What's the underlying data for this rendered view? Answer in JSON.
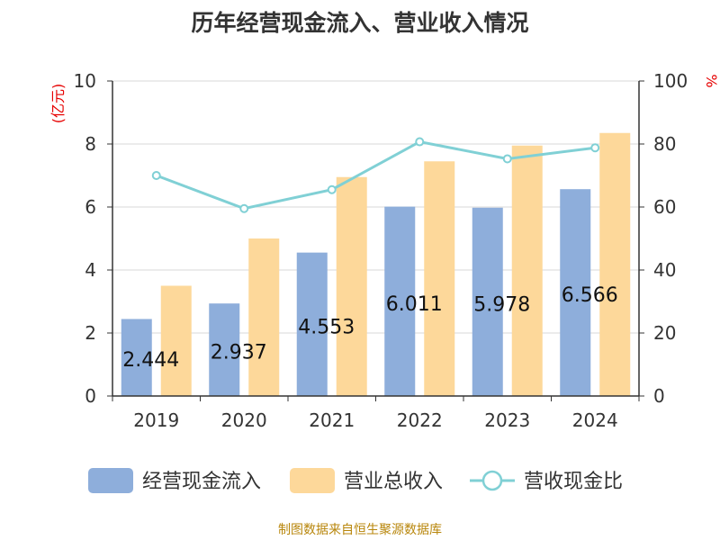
{
  "title": "历年经营现金流入、营业收入情况",
  "footer": "制图数据来自恒生聚源数据库",
  "chart_data": {
    "type": "bar",
    "categories": [
      "2019",
      "2020",
      "2021",
      "2022",
      "2023",
      "2024"
    ],
    "series": [
      {
        "name": "经营现金流入",
        "type": "bar",
        "axis": "left",
        "color": "#8eaedb",
        "values": [
          2.444,
          2.937,
          4.553,
          6.011,
          5.978,
          6.566
        ],
        "labels": [
          "2.444",
          "2.937",
          "4.553",
          "6.011",
          "5.978",
          "6.566"
        ]
      },
      {
        "name": "营业总收入",
        "type": "bar",
        "axis": "left",
        "color": "#fdd89a",
        "values": [
          3.5,
          5.0,
          6.95,
          7.45,
          7.95,
          8.35
        ]
      },
      {
        "name": "营收现金比",
        "type": "line",
        "axis": "right",
        "color": "#80d0d5",
        "values": [
          70.0,
          59.5,
          65.5,
          80.7,
          75.3,
          78.8
        ]
      }
    ],
    "y_left": {
      "unit": "(亿元)",
      "min": 0,
      "max": 10,
      "ticks": [
        "0",
        "2",
        "4",
        "6",
        "8",
        "10"
      ]
    },
    "y_right": {
      "unit": "%",
      "min": 0,
      "max": 100,
      "ticks": [
        "0",
        "20",
        "40",
        "60",
        "80",
        "100"
      ]
    },
    "grid": true,
    "legend_position": "bottom"
  }
}
